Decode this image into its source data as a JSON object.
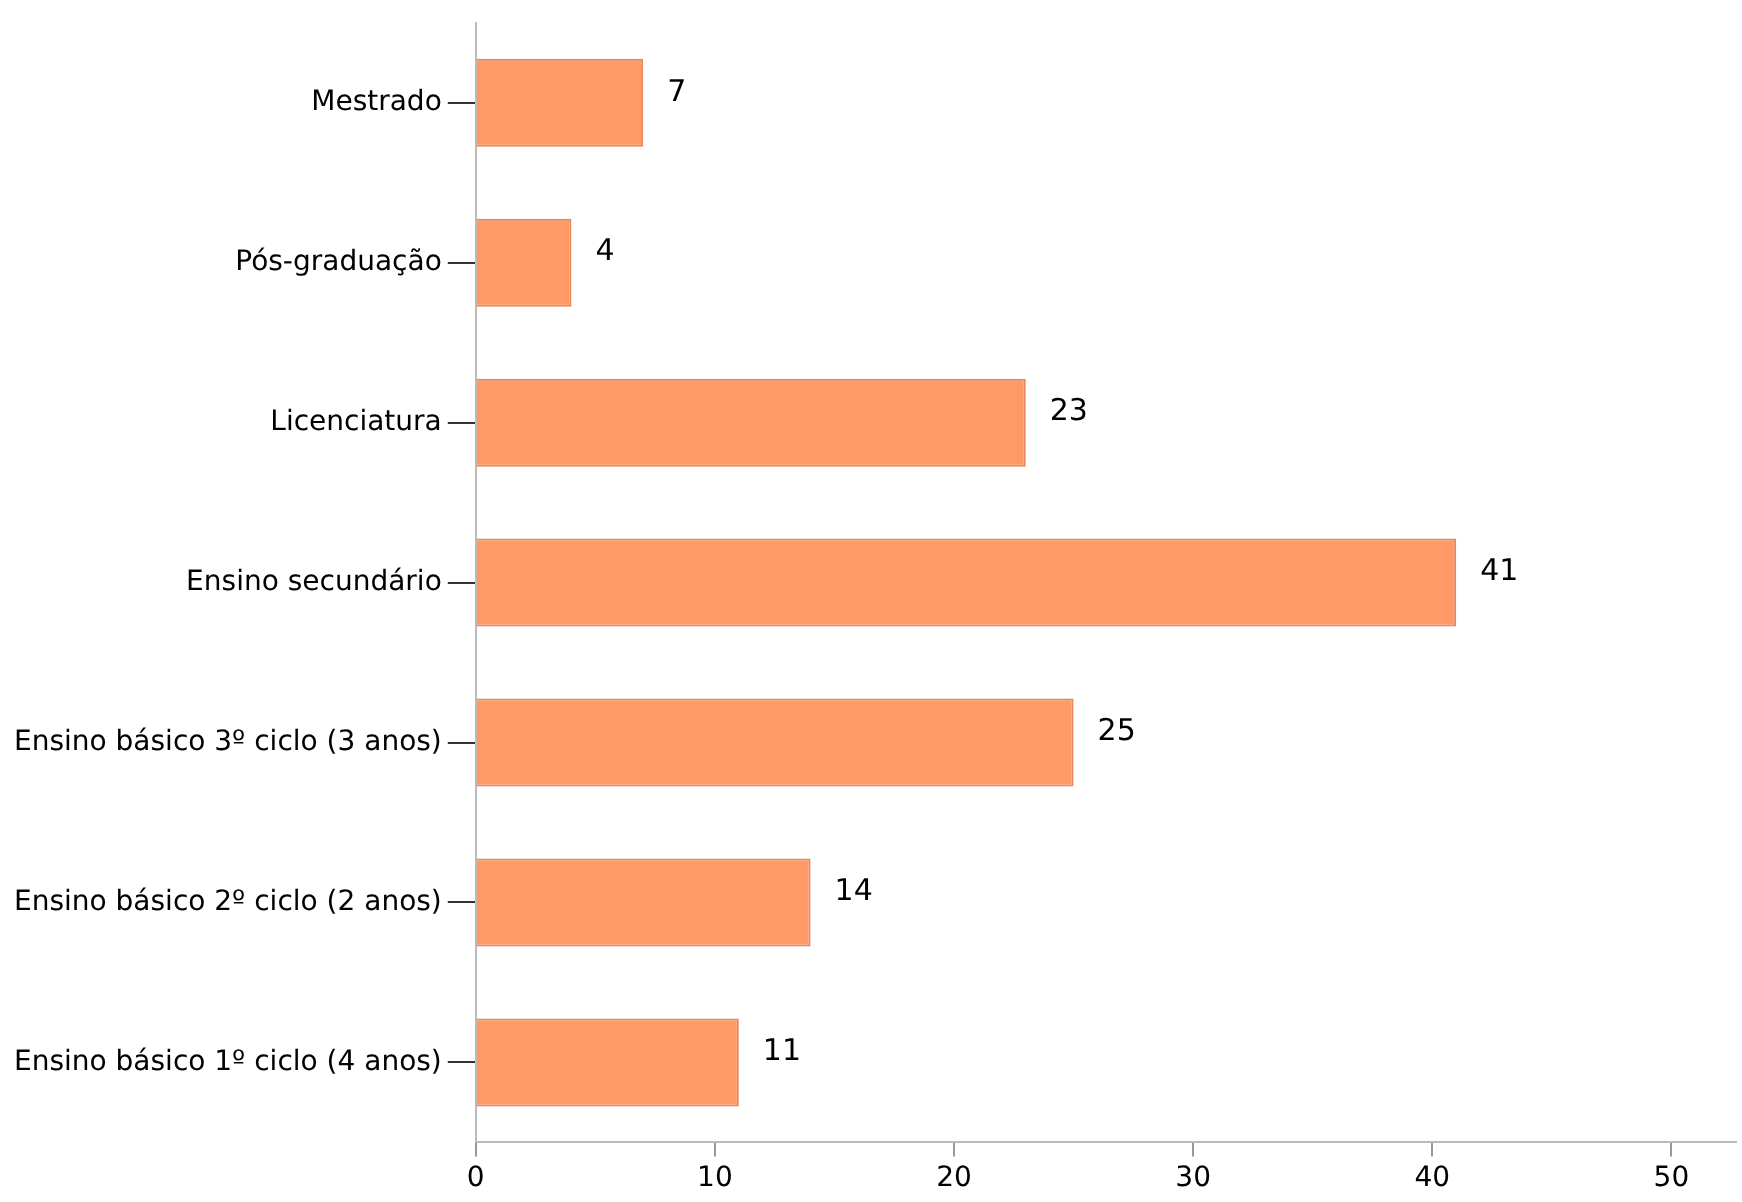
{
  "chart_data": {
    "type": "bar",
    "orientation": "horizontal",
    "categories": [
      "Mestrado",
      "Pós-graduação",
      "Licenciatura",
      "Ensino secundário",
      "Ensino básico 3º ciclo (3 anos)",
      "Ensino básico 2º ciclo (2 anos)",
      "Ensino básico 1º ciclo (4 anos)"
    ],
    "values": [
      7,
      4,
      23,
      41,
      25,
      14,
      11
    ],
    "color": "#ff9966",
    "xlim": [
      0,
      52.7
    ],
    "xticks": [
      0,
      10,
      20,
      30,
      40,
      50
    ],
    "data_labels": true,
    "grid": false,
    "legend": false
  }
}
